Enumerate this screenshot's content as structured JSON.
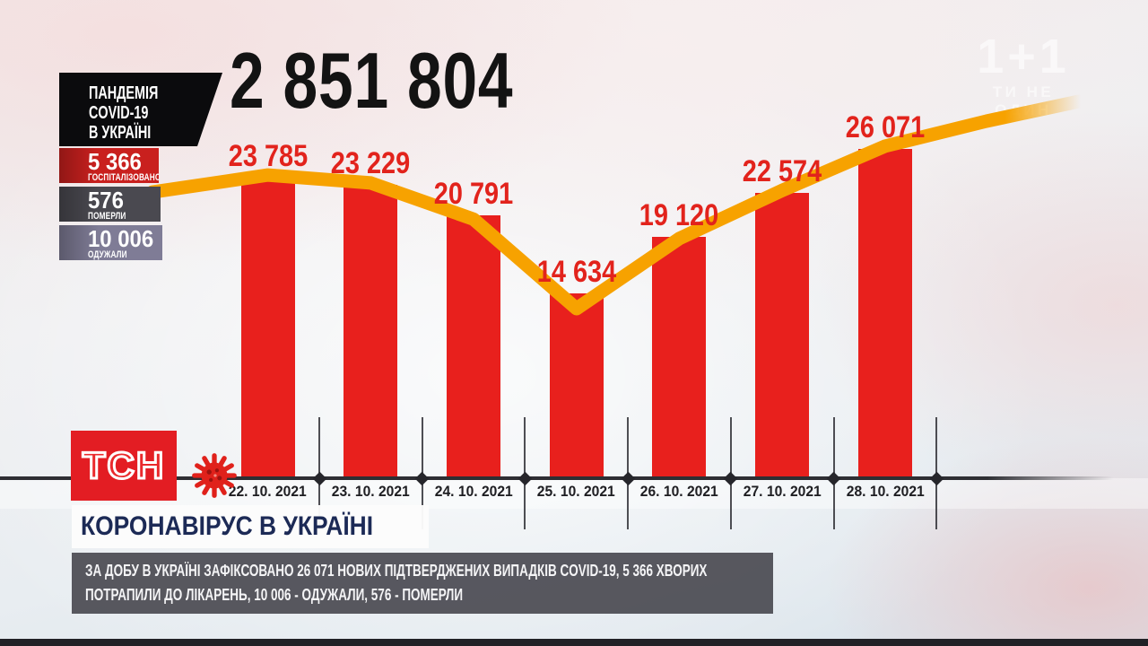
{
  "watermark": {
    "logo": "1+1",
    "slogan": "ТИ НЕ ОДИН"
  },
  "header": {
    "total_cases": "2 851 804",
    "pandemic_panel": {
      "lines": [
        "ПАНДЕМІЯ",
        "COVID-19",
        "В УКРАЇНІ"
      ]
    },
    "stat_boxes": [
      {
        "value": "5 366",
        "label": "ГОСПІТАЛІЗОВАНО",
        "bg": "#c9201e"
      },
      {
        "value": "576",
        "label": "ПОМЕРЛИ",
        "bg": "#4a4950"
      },
      {
        "value": "10 006",
        "label": "ОДУЖАЛИ",
        "bg": "#7f7c96"
      }
    ]
  },
  "chart_data": {
    "type": "bar",
    "title": "",
    "categories": [
      "22. 10. 2021",
      "23. 10. 2021",
      "24. 10. 2021",
      "25. 10. 2021",
      "26. 10. 2021",
      "27. 10. 2021",
      "28. 10. 2021"
    ],
    "values": [
      23785,
      23229,
      20791,
      14634,
      19120,
      22574,
      26071
    ],
    "bar_labels": [
      "23 785",
      "23 229",
      "20 791",
      "14 634",
      "19 120",
      "22 574",
      "26 071"
    ],
    "bar_color": "#e8201d",
    "trend_line_color": "#f7a200",
    "ylim": [
      0,
      28000
    ],
    "grid": false,
    "legend": "none"
  },
  "footer": {
    "channel_logo": "ТСН",
    "headline": "КОРОНАВІРУС В УКРАЇНІ",
    "ticker_lines": [
      "ЗА ДОБУ В УКРАЇНІ ЗАФІКСОВАНО 26 071 НОВИХ ПІДТВЕРДЖЕНИХ ВИПАДКІВ COVID-19, 5 366 ХВОРИХ",
      "ПОТРАПИЛИ ДО ЛІКАРЕНЬ, 10 006 - ОДУЖАЛИ, 576 - ПОМЕРЛИ"
    ]
  }
}
